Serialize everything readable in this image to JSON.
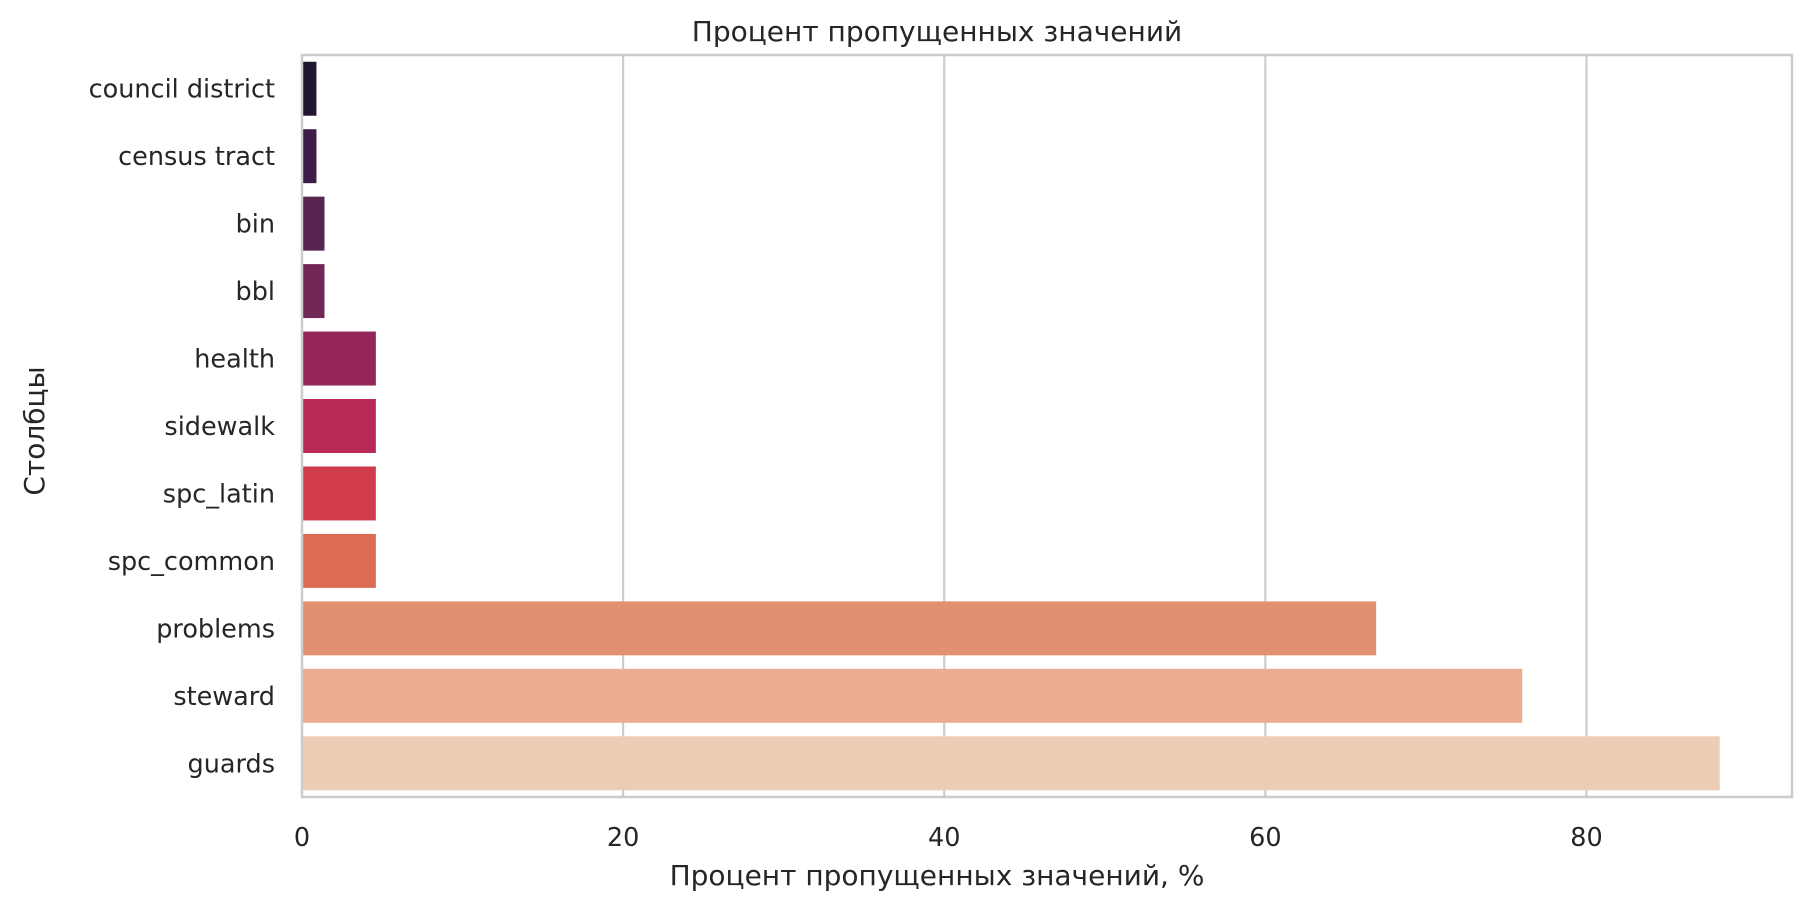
{
  "chart_data": {
    "type": "bar",
    "orientation": "horizontal",
    "title": "Процент пропущенных значений",
    "xlabel": "Процент пропущенных значений, %",
    "ylabel": "Столбцы",
    "categories": [
      "council district",
      "census tract",
      "bin",
      "bbl",
      "health",
      "sidewalk",
      "spc_latin",
      "spc_common",
      "problems",
      "steward",
      "guards"
    ],
    "values": [
      0.9,
      0.9,
      1.4,
      1.4,
      4.6,
      4.6,
      4.6,
      4.6,
      66.9,
      76.0,
      88.3
    ],
    "xlim": [
      0,
      92.8
    ],
    "xticks": [
      0,
      20,
      40,
      60,
      80
    ],
    "grid": true,
    "legend": false,
    "colors": [
      "#231630",
      "#3d1d47",
      "#57234f",
      "#722756",
      "#952659",
      "#b82955",
      "#d13c4c",
      "#dd6b52",
      "#e29072",
      "#ebad91",
      "#edccb5"
    ]
  }
}
